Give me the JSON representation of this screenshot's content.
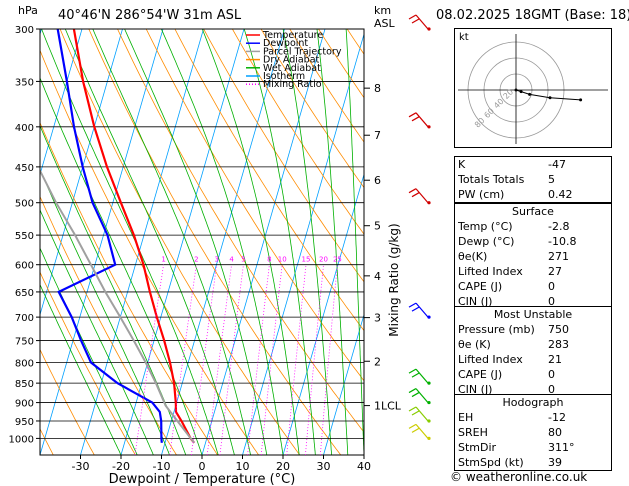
{
  "header": {
    "location": "40°46'N  286°54'W  31m  ASL",
    "datetime": "08.02.2025  18GMT  (Base: 18)",
    "hpa_unit": "hPa",
    "km_unit": "km",
    "asl_unit": "ASL"
  },
  "chart_data": {
    "type": "line",
    "title": "",
    "xlabel": "Dewpoint / Temperature (°C)",
    "ylabel": "hPa",
    "ylabel_right": "Mixing Ratio (g/kg)",
    "x_ticks": [
      -30,
      -20,
      -10,
      0,
      10,
      20,
      30,
      40
    ],
    "xlim": [
      -40,
      40
    ],
    "pressure_levels": [
      300,
      350,
      400,
      450,
      500,
      550,
      600,
      650,
      700,
      750,
      800,
      850,
      900,
      950,
      1000
    ],
    "ylim": [
      1050,
      300
    ],
    "y_scale": "log",
    "km_ticks": [
      {
        "label": "8",
        "p": 357
      },
      {
        "label": "7",
        "p": 410
      },
      {
        "label": "6",
        "p": 468
      },
      {
        "label": "5",
        "p": 535
      },
      {
        "label": "4",
        "p": 620
      },
      {
        "label": "3",
        "p": 701
      },
      {
        "label": "2",
        "p": 797
      },
      {
        "label": "1LCL",
        "p": 908
      }
    ],
    "mixing_ratio_labels": [
      "1",
      "2",
      "3",
      "4",
      "5",
      "8",
      "10",
      "15",
      "20",
      "25"
    ],
    "legend": {
      "placement": "top-left",
      "entries": [
        {
          "name": "Temperature",
          "color": "#ff0000"
        },
        {
          "name": "Dewpoint",
          "color": "#0000ff"
        },
        {
          "name": "Parcel Trajectory",
          "color": "#a0a0a0"
        },
        {
          "name": "Dry Adiabat",
          "color": "#ff8c00"
        },
        {
          "name": "Wet Adiabat",
          "color": "#00b000"
        },
        {
          "name": "Isotherm",
          "color": "#00a0ff"
        },
        {
          "name": "Mixing Ratio",
          "color": "#ff00ff"
        }
      ]
    },
    "series": [
      {
        "name": "Temperature",
        "color": "#ff0000",
        "points": [
          [
            1013,
            -2.8
          ],
          [
            1000,
            -4
          ],
          [
            950,
            -7.5
          ],
          [
            925,
            -9.5
          ],
          [
            900,
            -10.2
          ],
          [
            850,
            -12
          ],
          [
            800,
            -14.5
          ],
          [
            750,
            -17.5
          ],
          [
            700,
            -21
          ],
          [
            650,
            -24.5
          ],
          [
            600,
            -28
          ],
          [
            550,
            -32.5
          ],
          [
            500,
            -38
          ],
          [
            450,
            -44
          ],
          [
            400,
            -50
          ],
          [
            350,
            -56
          ],
          [
            300,
            -62
          ]
        ]
      },
      {
        "name": "Dewpoint",
        "color": "#0000ff",
        "points": [
          [
            1013,
            -10.8
          ],
          [
            1000,
            -11.2
          ],
          [
            950,
            -12.5
          ],
          [
            925,
            -13.5
          ],
          [
            900,
            -16
          ],
          [
            850,
            -26
          ],
          [
            800,
            -34
          ],
          [
            750,
            -38
          ],
          [
            700,
            -42
          ],
          [
            650,
            -47
          ],
          [
            600,
            -35
          ],
          [
            550,
            -39
          ],
          [
            500,
            -45
          ],
          [
            450,
            -50
          ],
          [
            400,
            -55
          ],
          [
            350,
            -60
          ],
          [
            300,
            -66
          ]
        ]
      },
      {
        "name": "Parcel Trajectory",
        "color": "#a0a0a0",
        "points": [
          [
            1013,
            -2.8
          ],
          [
            950,
            -8.5
          ],
          [
            908,
            -12.5
          ],
          [
            850,
            -16.5
          ],
          [
            800,
            -20.5
          ],
          [
            750,
            -25
          ],
          [
            700,
            -30
          ],
          [
            650,
            -35.5
          ],
          [
            600,
            -41
          ],
          [
            550,
            -47
          ],
          [
            500,
            -54
          ],
          [
            450,
            -61
          ],
          [
            400,
            -68
          ],
          [
            350,
            -76
          ],
          [
            300,
            -85
          ]
        ]
      }
    ]
  },
  "hodograph": {
    "label": "kt",
    "ring_labels": [
      "20",
      "40",
      "60",
      "80"
    ],
    "wind_points": [
      [
        0,
        0
      ],
      [
        3,
        3
      ],
      [
        8,
        8
      ],
      [
        20,
        14
      ],
      [
        38,
        18
      ]
    ]
  },
  "indices": {
    "top": [
      {
        "key": "K",
        "value": "-47"
      },
      {
        "key": "Totals Totals",
        "value": "5"
      },
      {
        "key": "PW (cm)",
        "value": "0.42"
      }
    ],
    "surface": {
      "title": "Surface",
      "rows": [
        {
          "key": "Temp (°C)",
          "value": "-2.8"
        },
        {
          "key": "Dewp (°C)",
          "value": "-10.8"
        },
        {
          "key": "θe(K)",
          "value": "271"
        },
        {
          "key": "Lifted Index",
          "value": "27"
        },
        {
          "key": "CAPE (J)",
          "value": "0"
        },
        {
          "key": "CIN (J)",
          "value": "0"
        }
      ]
    },
    "most_unstable": {
      "title": "Most Unstable",
      "rows": [
        {
          "key": "Pressure (mb)",
          "value": "750"
        },
        {
          "key": "θe (K)",
          "value": "283"
        },
        {
          "key": "Lifted Index",
          "value": "21"
        },
        {
          "key": "CAPE (J)",
          "value": "0"
        },
        {
          "key": "CIN (J)",
          "value": "0"
        }
      ]
    },
    "hodograph_block": {
      "title": "Hodograph",
      "rows": [
        {
          "key": "EH",
          "value": "-12"
        },
        {
          "key": "SREH",
          "value": "80"
        },
        {
          "key": "StmDir",
          "value": "311°"
        },
        {
          "key": "StmSpd (kt)",
          "value": "39"
        }
      ]
    }
  },
  "credit": "© weatheronline.co.uk"
}
